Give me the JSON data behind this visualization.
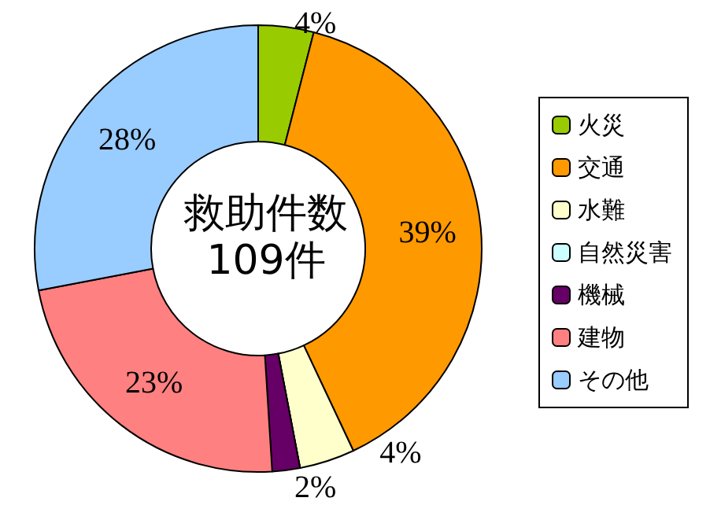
{
  "chart_data": {
    "type": "donut",
    "title": "救助件数",
    "subtitle": "109件",
    "categories": [
      "火災",
      "交通",
      "水難",
      "自然災害",
      "機械",
      "建物",
      "その他"
    ],
    "values": [
      4,
      39,
      4,
      0,
      2,
      23,
      28
    ],
    "value_labels": [
      "4%",
      "39%",
      "4%",
      null,
      "2%",
      "23%",
      "28%"
    ],
    "colors": [
      "#99cc00",
      "#ff9900",
      "#ffffcc",
      "#ccffff",
      "#660066",
      "#ff8080",
      "#99ccff"
    ],
    "legend": "right"
  }
}
